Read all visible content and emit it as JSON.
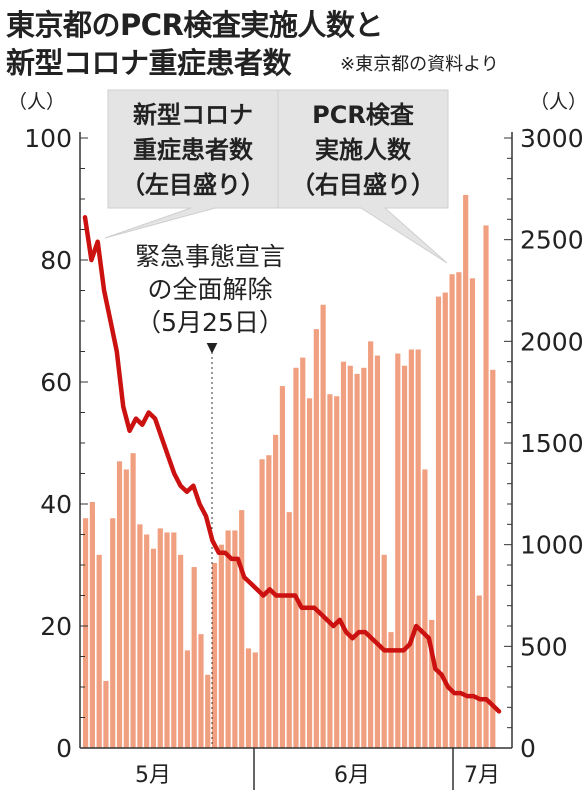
{
  "title_line1": "東京都のPCR検査実施人数と",
  "title_line2": "新型コロナ重症患者数",
  "source_note": "※東京都の資料より",
  "chart_data": {
    "type": "bar+line",
    "left_axis": {
      "unit": "（人）",
      "ticks": [
        0,
        20,
        40,
        60,
        80,
        100
      ],
      "ylim": [
        0,
        100
      ]
    },
    "right_axis": {
      "unit": "（人）",
      "ticks": [
        0,
        500,
        1000,
        1500,
        2000,
        2500,
        3000
      ],
      "ylim": [
        0,
        3000
      ]
    },
    "x_labels": [
      "5月",
      "6月",
      "7月"
    ],
    "series": [
      {
        "name": "PCR検査実施人数",
        "label_lines": [
          "PCR検査",
          "実施人数",
          "（右目盛り）"
        ],
        "type": "bar",
        "axis": "right",
        "color": "#f0a080",
        "values": [
          1130,
          1210,
          950,
          330,
          1130,
          1410,
          1370,
          1450,
          1100,
          1050,
          980,
          1080,
          1060,
          1060,
          950,
          480,
          890,
          560,
          360,
          910,
          1000,
          1070,
          1070,
          1170,
          490,
          470,
          1420,
          1440,
          1540,
          1780,
          1160,
          1870,
          1920,
          1720,
          2060,
          2180,
          1740,
          1730,
          1900,
          1880,
          1840,
          1870,
          2000,
          1930,
          950,
          570,
          1940,
          1880,
          1960,
          1960,
          1370,
          630,
          2220,
          2240,
          2330,
          2340,
          2720,
          2310,
          750,
          2570,
          1860
        ]
      },
      {
        "name": "新型コロナ重症患者数",
        "label_lines": [
          "新型コロナ",
          "重症患者数",
          "（左目盛り）"
        ],
        "type": "line",
        "axis": "left",
        "color": "#cc1111",
        "values": [
          87,
          80,
          83,
          75,
          70,
          65,
          56,
          52,
          54,
          53,
          55,
          54,
          51,
          48,
          45,
          43,
          42,
          43,
          40,
          38,
          34,
          32,
          32,
          31,
          31,
          28,
          27,
          26,
          25,
          26,
          25,
          25,
          25,
          25,
          23,
          23,
          23,
          22,
          21,
          20,
          21,
          19,
          18,
          19,
          19,
          18,
          17,
          16,
          16,
          16,
          16,
          17,
          20,
          19,
          18,
          13,
          12,
          10,
          9,
          9,
          8.5,
          8.5,
          8,
          8,
          7,
          6
        ]
      }
    ],
    "annotation": {
      "lines": [
        "緊急事態宣言",
        "の全面解除",
        "（5月25日）"
      ],
      "marker": "▼",
      "date": "5月25日"
    }
  }
}
